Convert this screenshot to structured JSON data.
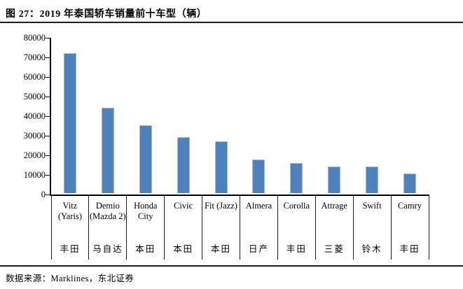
{
  "figure": {
    "title": "图 27：2019 年泰国轿车销量前十车型（辆）",
    "source": "数据来源：Marklines，东北证券"
  },
  "chart_data": {
    "type": "bar",
    "title": "2019 年泰国轿车销量前十车型（辆）",
    "categories": [
      "Vitz (Yaris)",
      "Demio (Mazda 2)",
      "Honda City",
      "Civic",
      "Fit (Jazz)",
      "Almera",
      "Corolla",
      "Attrage",
      "Swift",
      "Camry"
    ],
    "category_sublabels": [
      "丰田",
      "马自达",
      "本田",
      "本田",
      "本田",
      "日产",
      "丰田",
      "三菱",
      "铃木",
      "丰田"
    ],
    "values": [
      71500,
      43700,
      34800,
      28700,
      26300,
      17000,
      15500,
      13400,
      13500,
      10000
    ],
    "xlabel": "",
    "ylabel": "",
    "ylim": [
      0,
      80000
    ],
    "yticks": [
      0,
      10000,
      20000,
      30000,
      40000,
      50000,
      60000,
      70000,
      80000
    ],
    "grid": false,
    "legend": null,
    "bar_color": "#4F81BD",
    "bar_edge_color": "#9DB9DD",
    "axis_color": "#000000"
  }
}
